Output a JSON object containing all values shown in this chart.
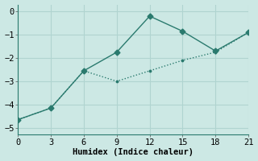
{
  "line1_x": [
    0,
    3,
    6,
    9,
    12,
    15,
    18,
    21
  ],
  "line1_y": [
    -4.65,
    -4.15,
    -2.55,
    -3.0,
    -2.55,
    -2.1,
    -1.75,
    -0.9
  ],
  "line2_x": [
    0,
    3,
    6,
    9,
    12,
    15,
    18,
    21
  ],
  "line2_y": [
    -4.65,
    -4.15,
    -2.55,
    -1.75,
    -0.2,
    -0.85,
    -1.7,
    -0.9
  ],
  "line_color": "#2a7a6e",
  "bg_color": "#cce8e4",
  "grid_color": "#b0d4d0",
  "xlabel": "Humidex (Indice chaleur)",
  "ylim": [
    -5.3,
    0.3
  ],
  "xlim": [
    0,
    21
  ],
  "xticks": [
    0,
    3,
    6,
    9,
    12,
    15,
    18,
    21
  ],
  "yticks": [
    0,
    -1,
    -2,
    -3,
    -4,
    -5
  ],
  "tick_fontsize": 7.5,
  "xlabel_fontsize": 7.5
}
